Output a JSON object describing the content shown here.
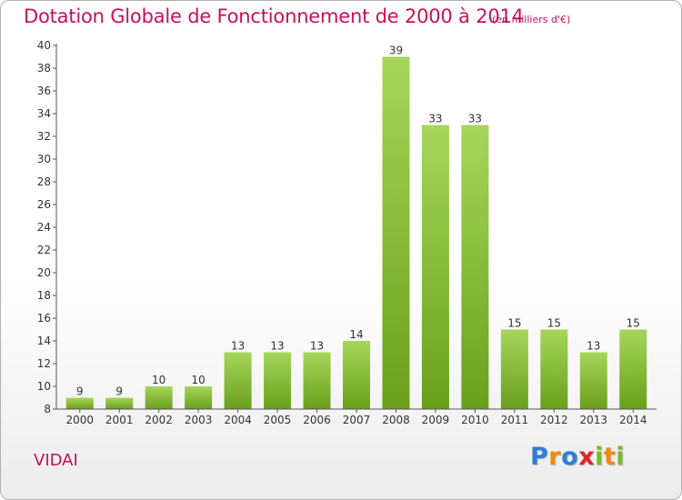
{
  "header": {
    "title": "Dotation Globale de Fonctionnement de 2000 à 2014",
    "unit": "(en milliers d'€)"
  },
  "commune": "VIDAI",
  "logo": {
    "letters": [
      {
        "char": "P",
        "color": "#2f7fd4"
      },
      {
        "char": "r",
        "color": "#f08a12"
      },
      {
        "char": "o",
        "color": "#2f7fd4"
      },
      {
        "char": "x",
        "color": "#e0262b"
      },
      {
        "char": "i",
        "color": "#7cb828"
      },
      {
        "char": "t",
        "color": "#f08a12"
      },
      {
        "char": "i",
        "color": "#7cb828"
      }
    ]
  },
  "colors": {
    "bar_light": "#a6d65a",
    "bar_dark": "#6a9f1c",
    "axis": "#555555",
    "text": "#333333",
    "accent": "#c8105a"
  },
  "chart_data": {
    "type": "bar",
    "categories": [
      "2000",
      "2001",
      "2002",
      "2003",
      "2004",
      "2005",
      "2006",
      "2007",
      "2008",
      "2009",
      "2010",
      "2011",
      "2012",
      "2013",
      "2014"
    ],
    "values": [
      9,
      9,
      10,
      10,
      13,
      13,
      13,
      14,
      39,
      33,
      33,
      15,
      15,
      13,
      15
    ],
    "title": "Dotation Globale de Fonctionnement de 2000 à 2014",
    "ylim": [
      8,
      40
    ],
    "yticks": [
      8,
      10,
      12,
      14,
      16,
      18,
      20,
      22,
      24,
      26,
      28,
      30,
      32,
      34,
      36,
      38,
      40
    ],
    "grid": false,
    "legend": "none"
  }
}
